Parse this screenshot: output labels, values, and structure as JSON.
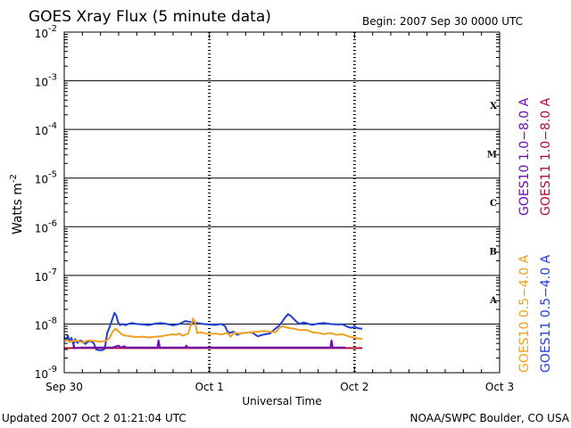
{
  "header": {
    "title": "GOES Xray Flux (5 minute data)",
    "begin": "Begin:  2007 Sep 30 0000 UTC"
  },
  "footer": {
    "updated": "Updated 2007 Oct  2 01:21:04 UTC",
    "credit": "NOAA/SWPC Boulder, CO USA"
  },
  "chart_data": {
    "type": "line",
    "title": "GOES Xray Flux (5 minute data)",
    "xlabel": "Universal Time",
    "ylabel": "Watts m",
    "ylabel_sup": "-2",
    "yscale": "log",
    "ylim": [
      1e-09,
      0.01
    ],
    "xlim_hours": [
      0,
      72
    ],
    "x_ticks": [
      {
        "hour": 0,
        "label": "Sep 30"
      },
      {
        "hour": 24,
        "label": "Oct 1"
      },
      {
        "hour": 48,
        "label": "Oct 2"
      },
      {
        "hour": 72,
        "label": "Oct 3"
      }
    ],
    "y_ticks": [
      {
        "exp": -9,
        "base": "10",
        "sup": "-9"
      },
      {
        "exp": -8,
        "base": "10",
        "sup": "-8"
      },
      {
        "exp": -7,
        "base": "10",
        "sup": "-7"
      },
      {
        "exp": -6,
        "base": "10",
        "sup": "-6"
      },
      {
        "exp": -5,
        "base": "10",
        "sup": "-5"
      },
      {
        "exp": -4,
        "base": "10",
        "sup": "-4"
      },
      {
        "exp": -3,
        "base": "10",
        "sup": "-3"
      },
      {
        "exp": -2,
        "base": "10",
        "sup": "-2"
      }
    ],
    "flare_classes": [
      {
        "label": "A",
        "exp": -7.5
      },
      {
        "label": "B",
        "exp": -6.5
      },
      {
        "label": "C",
        "exp": -5.5
      },
      {
        "label": "M",
        "exp": -4.5
      },
      {
        "label": "X",
        "exp": -3.5
      }
    ],
    "grid": {
      "horizontal_at_decades": true,
      "vertical_dashed_at_days": true
    },
    "series": [
      {
        "name": "GOES11 0.5-4.0 A",
        "color": "#1f3fd8",
        "points": [
          [
            0,
            5.5e-09
          ],
          [
            0.3,
            4.6e-09
          ],
          [
            0.6,
            5.8e-09
          ],
          [
            0.9,
            4.3e-09
          ],
          [
            1.2,
            5.2e-09
          ],
          [
            1.5,
            3.8e-09
          ],
          [
            1.8,
            4.9e-09
          ],
          [
            2.2,
            4.1e-09
          ],
          [
            2.6,
            4.6e-09
          ],
          [
            3.0,
            4.4e-09
          ],
          [
            3.5,
            3.9e-09
          ],
          [
            4.0,
            4.4e-09
          ],
          [
            4.4,
            4.5e-09
          ],
          [
            4.9,
            4e-09
          ],
          [
            5.3,
            3e-09
          ],
          [
            5.8,
            2.9e-09
          ],
          [
            6.3,
            2.9e-09
          ],
          [
            6.7,
            3.1e-09
          ],
          [
            7.1,
            6.5e-09
          ],
          [
            7.6,
            9.3e-09
          ],
          [
            8.0,
            1.3e-08
          ],
          [
            8.3,
            1.7e-08
          ],
          [
            8.6,
            1.5e-08
          ],
          [
            8.9,
            1.1e-08
          ],
          [
            9.2,
            9.5e-09
          ],
          [
            9.6,
            1e-08
          ],
          [
            10.1,
            9.5e-09
          ],
          [
            10.6,
            1e-08
          ],
          [
            11.2,
            1.05e-08
          ],
          [
            12,
            1e-08
          ],
          [
            13,
            9.8e-09
          ],
          [
            14,
            9.5e-09
          ],
          [
            15,
            1.02e-08
          ],
          [
            16,
            1.05e-08
          ],
          [
            17,
            1e-08
          ],
          [
            18,
            9.4e-09
          ],
          [
            19,
            1e-08
          ],
          [
            20,
            1.15e-08
          ],
          [
            21,
            1.1e-08
          ],
          [
            22,
            1.05e-08
          ],
          [
            23,
            1e-08
          ],
          [
            24,
            9.8e-09
          ],
          [
            25,
            9.6e-09
          ],
          [
            26,
            1e-08
          ],
          [
            26.6,
            9e-09
          ],
          [
            27,
            7e-09
          ],
          [
            27.4,
            6.6e-09
          ],
          [
            28,
            7e-09
          ],
          [
            28.6,
            6e-09
          ],
          [
            29.3,
            6.5e-09
          ],
          [
            30,
            6.6e-09
          ],
          [
            31,
            6.8e-09
          ],
          [
            32,
            5.6e-09
          ],
          [
            33,
            6.1e-09
          ],
          [
            34,
            6.4e-09
          ],
          [
            35,
            8.2e-09
          ],
          [
            35.5,
            9.2e-09
          ],
          [
            36,
            1.1e-08
          ],
          [
            36.5,
            1.35e-08
          ],
          [
            37,
            1.6e-08
          ],
          [
            37.5,
            1.45e-08
          ],
          [
            38,
            1.25e-08
          ],
          [
            38.5,
            1.1e-08
          ],
          [
            39,
            1e-08
          ],
          [
            39.5,
            1.08e-08
          ],
          [
            40,
            1.05e-08
          ],
          [
            40.5,
            1e-08
          ],
          [
            41,
            9.6e-09
          ],
          [
            42,
            1.02e-08
          ],
          [
            43,
            1.05e-08
          ],
          [
            44,
            1e-08
          ],
          [
            45,
            9.8e-09
          ],
          [
            46,
            9.9e-09
          ],
          [
            47,
            8.6e-09
          ],
          [
            47.5,
            8.4e-09
          ],
          [
            48,
            8.8e-09
          ],
          [
            48.6,
            8.2e-09
          ],
          [
            49.3,
            8e-09
          ]
        ]
      },
      {
        "name": "GOES10 0.5-4.0 A",
        "color": "#f0a020",
        "points": [
          [
            0,
            4.8e-09
          ],
          [
            1,
            4.4e-09
          ],
          [
            2,
            4.6e-09
          ],
          [
            3,
            4.2e-09
          ],
          [
            4,
            4.6e-09
          ],
          [
            5,
            4.5e-09
          ],
          [
            6,
            4.3e-09
          ],
          [
            7,
            4.6e-09
          ],
          [
            7.5,
            5.2e-09
          ],
          [
            8,
            7e-09
          ],
          [
            8.5,
            8e-09
          ],
          [
            9,
            7e-09
          ],
          [
            9.5,
            6.2e-09
          ],
          [
            10,
            5.8e-09
          ],
          [
            11,
            5.6e-09
          ],
          [
            12,
            5.4e-09
          ],
          [
            13,
            5.5e-09
          ],
          [
            14,
            5.3e-09
          ],
          [
            15,
            5.5e-09
          ],
          [
            16,
            5.6e-09
          ],
          [
            17,
            5.9e-09
          ],
          [
            18,
            6.2e-09
          ],
          [
            18.5,
            6e-09
          ],
          [
            19,
            6.4e-09
          ],
          [
            19.5,
            5.8e-09
          ],
          [
            20,
            6e-09
          ],
          [
            20.5,
            6.4e-09
          ],
          [
            21,
            1e-08
          ],
          [
            21.3,
            1.3e-08
          ],
          [
            21.6,
            1.1e-08
          ],
          [
            22,
            6.5e-09
          ],
          [
            22.5,
            6.8e-09
          ],
          [
            23,
            6.6e-09
          ],
          [
            24,
            6.2e-09
          ],
          [
            25,
            6.4e-09
          ],
          [
            26,
            6.1e-09
          ],
          [
            27,
            6.6e-09
          ],
          [
            27.5,
            5.5e-09
          ],
          [
            28,
            6.6e-09
          ],
          [
            29,
            6.4e-09
          ],
          [
            30,
            6.6e-09
          ],
          [
            31,
            6.8e-09
          ],
          [
            32,
            7e-09
          ],
          [
            33,
            7.2e-09
          ],
          [
            34,
            7e-09
          ],
          [
            35,
            6.8e-09
          ],
          [
            35.5,
            8.2e-09
          ],
          [
            36,
            9e-09
          ],
          [
            37,
            8.4e-09
          ],
          [
            38,
            8e-09
          ],
          [
            39,
            7.5e-09
          ],
          [
            40,
            7.6e-09
          ],
          [
            41,
            6.8e-09
          ],
          [
            42,
            6.6e-09
          ],
          [
            43,
            6.2e-09
          ],
          [
            44,
            6.6e-09
          ],
          [
            45,
            6e-09
          ],
          [
            46,
            6.2e-09
          ],
          [
            47,
            5.6e-09
          ],
          [
            48,
            5.2e-09
          ],
          [
            49.3,
            4.9e-09
          ]
        ]
      },
      {
        "name": "GOES11 1.0-8.0 A",
        "color": "#b01030",
        "points": [
          [
            0,
            3.2e-09
          ],
          [
            49.3,
            3.2e-09
          ]
        ]
      },
      {
        "name": "GOES10 1.0-8.0 A",
        "color": "#6a0fb0",
        "points": [
          [
            1.5,
            3.2e-09
          ],
          [
            1.6,
            3.7e-09
          ],
          [
            1.7,
            3.2e-09
          ],
          [
            3,
            3.3e-09
          ],
          [
            8,
            3.3e-09
          ],
          [
            9,
            3.6e-09
          ],
          [
            9.3,
            3.3e-09
          ],
          [
            10,
            3.5e-09
          ],
          [
            10.2,
            3.3e-09
          ],
          [
            12,
            3.3e-09
          ],
          [
            15.4,
            3.3e-09
          ],
          [
            15.6,
            4.6e-09
          ],
          [
            15.8,
            3.3e-09
          ],
          [
            20,
            3.3e-09
          ],
          [
            20.2,
            3.6e-09
          ],
          [
            20.4,
            3.3e-09
          ],
          [
            30,
            3.3e-09
          ],
          [
            44,
            3.3e-09
          ],
          [
            44.2,
            4.6e-09
          ],
          [
            44.4,
            3.3e-09
          ],
          [
            46.5,
            3.3e-09
          ]
        ]
      }
    ],
    "legend": [
      {
        "text": "GOES10 1.0−8.0 A",
        "color": "#6a0fb0"
      },
      {
        "text": "GOES11 1.0−8.0 A",
        "color": "#b01030"
      },
      {
        "text": "GOES10 0.5−4.0 A",
        "color": "#f0a020"
      },
      {
        "text": "GOES11 0.5−4.0 A",
        "color": "#1f3fd8"
      }
    ]
  }
}
